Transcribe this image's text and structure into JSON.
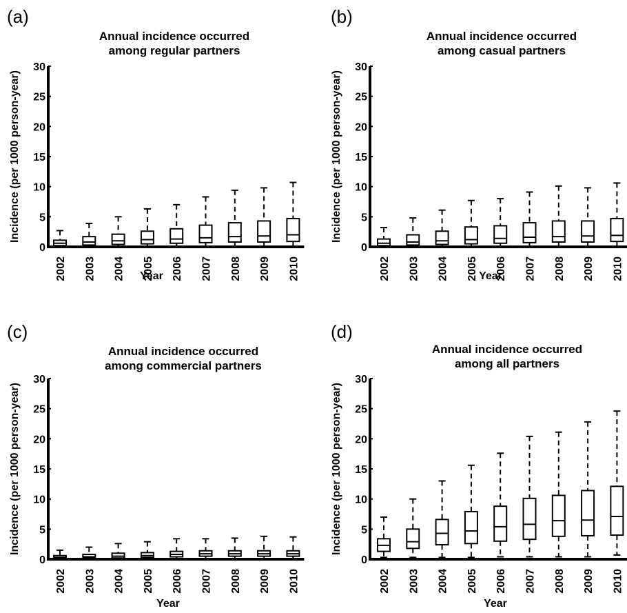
{
  "chart_data": [
    {
      "panel": "(a)",
      "type": "box",
      "title_lines": [
        "Annual incidence occurred",
        "among regular partners"
      ],
      "xlabel": "Year",
      "ylabel": "Incidence (per 1000 person-year)",
      "ylim": [
        0,
        30
      ],
      "yticks": [
        0,
        5,
        10,
        15,
        20,
        25,
        30
      ],
      "categories": [
        "2002",
        "2003",
        "2004",
        "2005",
        "2006",
        "2007",
        "2008",
        "2009",
        "2010"
      ],
      "boxes": [
        {
          "min": 0,
          "q1": 0.2,
          "median": 0.6,
          "q3": 1.1,
          "max": 2.7
        },
        {
          "min": 0,
          "q1": 0.3,
          "median": 0.8,
          "q3": 1.7,
          "max": 3.9
        },
        {
          "min": 0,
          "q1": 0.4,
          "median": 1.0,
          "q3": 2.1,
          "max": 5.0
        },
        {
          "min": 0,
          "q1": 0.5,
          "median": 1.2,
          "q3": 2.6,
          "max": 6.3
        },
        {
          "min": 0,
          "q1": 0.6,
          "median": 1.3,
          "q3": 3.0,
          "max": 7.0
        },
        {
          "min": 0,
          "q1": 0.7,
          "median": 1.5,
          "q3": 3.6,
          "max": 8.3
        },
        {
          "min": 0,
          "q1": 0.8,
          "median": 1.7,
          "q3": 4.0,
          "max": 9.4
        },
        {
          "min": 0,
          "q1": 0.8,
          "median": 1.8,
          "q3": 4.3,
          "max": 9.8
        },
        {
          "min": 0,
          "q1": 0.9,
          "median": 2.0,
          "q3": 4.7,
          "max": 10.7
        }
      ]
    },
    {
      "panel": "(b)",
      "type": "box",
      "title_lines": [
        "Annual incidence occurred",
        "among casual partners"
      ],
      "xlabel": "Year",
      "ylabel": "Incidence (per 1000 person-year)",
      "ylim": [
        0,
        30
      ],
      "yticks": [
        0,
        5,
        10,
        15,
        20,
        25,
        30
      ],
      "categories": [
        "2002",
        "2003",
        "2004",
        "2005",
        "2006",
        "2007",
        "2008",
        "2009",
        "2010"
      ],
      "boxes": [
        {
          "min": 0,
          "q1": 0.2,
          "median": 0.6,
          "q3": 1.3,
          "max": 3.2
        },
        {
          "min": 0,
          "q1": 0.3,
          "median": 0.8,
          "q3": 2.0,
          "max": 4.8
        },
        {
          "min": 0,
          "q1": 0.4,
          "median": 1.0,
          "q3": 2.6,
          "max": 6.1
        },
        {
          "min": 0,
          "q1": 0.5,
          "median": 1.2,
          "q3": 3.3,
          "max": 7.7
        },
        {
          "min": 0,
          "q1": 0.6,
          "median": 1.4,
          "q3": 3.5,
          "max": 8.0
        },
        {
          "min": 0,
          "q1": 0.7,
          "median": 1.6,
          "q3": 4.0,
          "max": 9.1
        },
        {
          "min": 0,
          "q1": 0.8,
          "median": 1.7,
          "q3": 4.3,
          "max": 10.1
        },
        {
          "min": 0,
          "q1": 0.8,
          "median": 1.8,
          "q3": 4.3,
          "max": 9.8
        },
        {
          "min": 0,
          "q1": 0.9,
          "median": 1.9,
          "q3": 4.7,
          "max": 10.6
        }
      ]
    },
    {
      "panel": "(c)",
      "type": "box",
      "title_lines": [
        "Annual incidence occurred",
        "among commercial partners"
      ],
      "xlabel": "Year",
      "ylabel": "Incidence (per 1000 person-year)",
      "ylim": [
        0,
        30
      ],
      "yticks": [
        0,
        5,
        10,
        15,
        20,
        25,
        30
      ],
      "categories": [
        "2002",
        "2003",
        "2004",
        "2005",
        "2006",
        "2007",
        "2008",
        "2009",
        "2010"
      ],
      "boxes": [
        {
          "min": 0,
          "q1": 0.1,
          "median": 0.3,
          "q3": 0.6,
          "max": 1.5
        },
        {
          "min": 0,
          "q1": 0.2,
          "median": 0.4,
          "q3": 0.8,
          "max": 2.0
        },
        {
          "min": 0,
          "q1": 0.2,
          "median": 0.5,
          "q3": 1.0,
          "max": 2.6
        },
        {
          "min": 0,
          "q1": 0.3,
          "median": 0.6,
          "q3": 1.1,
          "max": 2.9
        },
        {
          "min": 0,
          "q1": 0.4,
          "median": 0.8,
          "q3": 1.3,
          "max": 3.4
        },
        {
          "min": 0,
          "q1": 0.5,
          "median": 0.9,
          "q3": 1.4,
          "max": 3.4
        },
        {
          "min": 0,
          "q1": 0.5,
          "median": 0.9,
          "q3": 1.4,
          "max": 3.5
        },
        {
          "min": 0,
          "q1": 0.5,
          "median": 0.9,
          "q3": 1.4,
          "max": 3.8
        },
        {
          "min": 0,
          "q1": 0.5,
          "median": 0.9,
          "q3": 1.4,
          "max": 3.7
        }
      ]
    },
    {
      "panel": "(d)",
      "type": "box",
      "title_lines": [
        "Annual incidence occurred",
        "among all partners"
      ],
      "xlabel": "Year",
      "ylabel": "Incidence (per 1000 person-year)",
      "ylim": [
        0,
        30
      ],
      "yticks": [
        0,
        5,
        10,
        15,
        20,
        25,
        30
      ],
      "categories": [
        "2002",
        "2003",
        "2004",
        "2005",
        "2006",
        "2007",
        "2008",
        "2009",
        "2010"
      ],
      "boxes": [
        {
          "min": 0.3,
          "q1": 1.3,
          "median": 2.3,
          "q3": 3.4,
          "max": 7.0
        },
        {
          "min": 0.3,
          "q1": 1.8,
          "median": 2.9,
          "q3": 5.0,
          "max": 10.0
        },
        {
          "min": 0.3,
          "q1": 2.4,
          "median": 4.3,
          "q3": 6.6,
          "max": 13.0
        },
        {
          "min": 0.3,
          "q1": 2.6,
          "median": 4.7,
          "q3": 7.9,
          "max": 15.6
        },
        {
          "min": 0.4,
          "q1": 3.0,
          "median": 5.4,
          "q3": 8.8,
          "max": 17.6
        },
        {
          "min": 0.4,
          "q1": 3.3,
          "median": 5.8,
          "q3": 10.1,
          "max": 20.4
        },
        {
          "min": 0.4,
          "q1": 3.8,
          "median": 6.4,
          "q3": 10.6,
          "max": 21.1
        },
        {
          "min": 0.4,
          "q1": 3.9,
          "median": 6.5,
          "q3": 11.4,
          "max": 22.8
        },
        {
          "min": 0.7,
          "q1": 4.0,
          "median": 7.1,
          "q3": 12.1,
          "max": 24.6
        }
      ]
    }
  ]
}
